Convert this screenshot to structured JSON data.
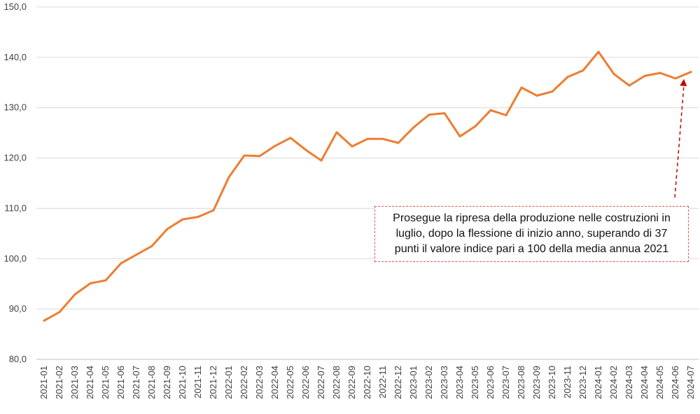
{
  "chart_data": {
    "type": "line",
    "title": "",
    "xlabel": "",
    "ylabel": "",
    "ylim": [
      80,
      150
    ],
    "yticks": [
      "80,0",
      "90,0",
      "100,0",
      "110,0",
      "120,0",
      "130,0",
      "140,0",
      "150,0"
    ],
    "grid": "horizontal",
    "line_color": "#ed7d31",
    "categories": [
      "2021-01",
      "2021-02",
      "2021-03",
      "2021-04",
      "2021-05",
      "2021-06",
      "2021-07",
      "2021-08",
      "2021-09",
      "2021-10",
      "2021-11",
      "2021-12",
      "2022-01",
      "2022-02",
      "2022-03",
      "2022-04",
      "2022-05",
      "2022-06",
      "2022-07",
      "2022-08",
      "2022-09",
      "2022-10",
      "2022-11",
      "2022-12",
      "2023-01",
      "2023-02",
      "2023-03",
      "2023-04",
      "2023-05",
      "2023-06",
      "2023-07",
      "2023-08",
      "2023-09",
      "2023-10",
      "2023-11",
      "2023-12",
      "2024-01",
      "2024-02",
      "2024-03",
      "2024-04",
      "2024-05",
      "2024-06",
      "2024-07"
    ],
    "series": [
      {
        "values": [
          87.7,
          89.4,
          92.9,
          95.1,
          95.7,
          99.1,
          100.8,
          102.5,
          105.9,
          107.8,
          108.3,
          109.6,
          116.2,
          120.5,
          120.4,
          122.4,
          124.0,
          121.6,
          119.5,
          125.1,
          122.3,
          123.8,
          123.8,
          123.0,
          126.1,
          128.6,
          128.9,
          124.3,
          126.3,
          129.5,
          128.5,
          134.0,
          132.4,
          133.2,
          136.1,
          137.4,
          141.1,
          136.7,
          134.4,
          136.3,
          136.9,
          135.8,
          137.1
        ]
      }
    ],
    "annotation": {
      "text": "Prosegue la ripresa della produzione nelle costruzioni in luglio, dopo la flessione di inizio anno, superando di 37 punti il valore indice pari a 100 della media annua 2021",
      "arrow_color": "#c00000",
      "box_border_color": "#e0554c"
    }
  }
}
